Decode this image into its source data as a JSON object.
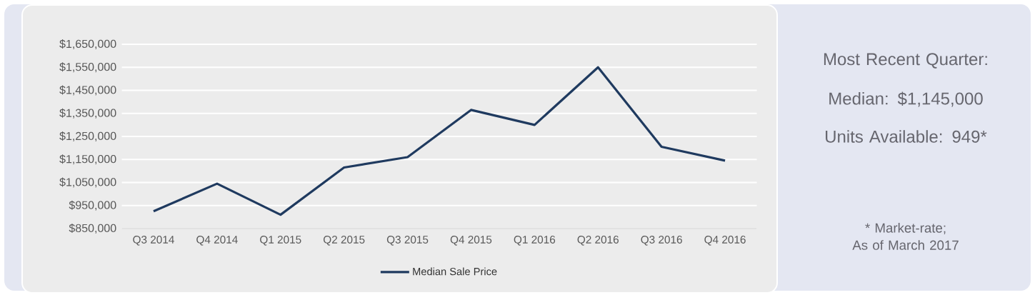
{
  "chart_data": {
    "type": "line",
    "categories": [
      "Q3 2014",
      "Q4 2014",
      "Q1 2015",
      "Q2 2015",
      "Q3 2015",
      "Q4 2015",
      "Q1 2016",
      "Q2 2016",
      "Q3 2016",
      "Q4 2016"
    ],
    "series": [
      {
        "name": "Median Sale Price",
        "color": "#1f3a5f",
        "values": [
          925000,
          1045000,
          910000,
          1115000,
          1160000,
          1365000,
          1300000,
          1550000,
          1205000,
          1145000
        ]
      }
    ],
    "ylim": [
      850000,
      1650000
    ],
    "yticks": [
      {
        "value": 850000,
        "label": "$850,000"
      },
      {
        "value": 950000,
        "label": "$950,000"
      },
      {
        "value": 1050000,
        "label": "$1,050,000"
      },
      {
        "value": 1150000,
        "label": "$1,150,000"
      },
      {
        "value": 1250000,
        "label": "$1,250,000"
      },
      {
        "value": 1350000,
        "label": "$1,350,000"
      },
      {
        "value": 1450000,
        "label": "$1,450,000"
      },
      {
        "value": 1550000,
        "label": "$1,550,000"
      },
      {
        "value": 1650000,
        "label": "$1,650,000"
      }
    ],
    "grid": "y",
    "legend": "bottom",
    "annotations": [
      "Most Recent Quarter:",
      "Median: $1,145,000",
      "Units Available: 949*",
      "* Market-rate;",
      "As of March 2017"
    ]
  }
}
